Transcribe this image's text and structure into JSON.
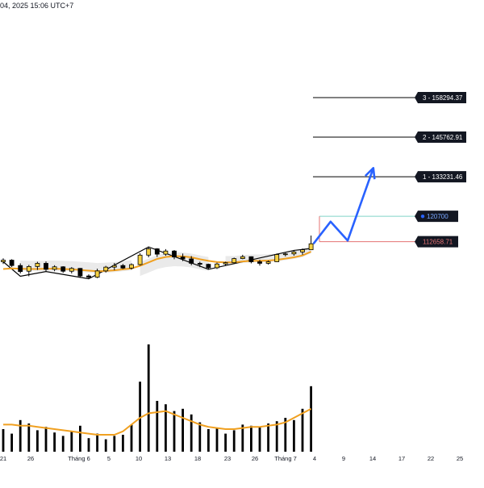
{
  "header": {
    "text": "04, 2025 15:06 UTC+7"
  },
  "colors": {
    "up": "#f5d142",
    "down": "#000000",
    "ma": "#f0a020",
    "projection": "#2962ff",
    "zigzag": "#000000",
    "entry_line": "#81d4c7",
    "stop_line": "#e57373",
    "target_line": "#000000",
    "label_bg": "#131722",
    "label_text": "#ffffff",
    "entry_dot": "#2962ff",
    "band": "#d9d9d9",
    "axis_text": "#131722"
  },
  "chart_data": [
    {
      "type": "candlestick",
      "title": "",
      "x_tick_labels": [
        "21",
        "26",
        "Tháng 6",
        "5",
        "10",
        "13",
        "18",
        "23",
        "26",
        "Tháng 7",
        "4",
        "9",
        "14",
        "17",
        "22",
        "25"
      ],
      "ohlc": [
        [
          106300,
          107400,
          105600,
          106800
        ],
        [
          106800,
          107100,
          104600,
          105100
        ],
        [
          105100,
          105800,
          102600,
          103200
        ],
        [
          103300,
          105300,
          101700,
          104800
        ],
        [
          104800,
          106300,
          103700,
          105800
        ],
        [
          105800,
          106400,
          103200,
          103900
        ],
        [
          103900,
          105200,
          103300,
          104700
        ],
        [
          104700,
          104900,
          102800,
          103300
        ],
        [
          103300,
          104600,
          102600,
          104200
        ],
        [
          104200,
          104300,
          101200,
          101800
        ],
        [
          101800,
          102300,
          100900,
          101400
        ],
        [
          101400,
          104100,
          101100,
          103400
        ],
        [
          103400,
          105000,
          102900,
          104600
        ],
        [
          104600,
          105900,
          103600,
          105100
        ],
        [
          105100,
          105600,
          104000,
          104300
        ],
        [
          104300,
          105800,
          103800,
          105400
        ],
        [
          105400,
          109000,
          105100,
          108400
        ],
        [
          108400,
          111000,
          107700,
          110400
        ],
        [
          110400,
          110600,
          107800,
          108700
        ],
        [
          108700,
          110300,
          108200,
          109700
        ],
        [
          109700,
          110000,
          107100,
          107800
        ],
        [
          107800,
          108900,
          106500,
          107200
        ],
        [
          107200,
          108100,
          105200,
          105800
        ],
        [
          105800,
          106300,
          104600,
          105500
        ],
        [
          105500,
          105700,
          103900,
          104400
        ],
        [
          104400,
          106000,
          104000,
          105600
        ],
        [
          105600,
          106300,
          105000,
          106000
        ],
        [
          106000,
          107600,
          105700,
          107300
        ],
        [
          107300,
          108500,
          107100,
          107900
        ],
        [
          107900,
          108000,
          105800,
          106300
        ],
        [
          106300,
          106900,
          105100,
          105800
        ],
        [
          105800,
          106700,
          105400,
          106300
        ],
        [
          106300,
          108900,
          106200,
          108600
        ],
        [
          108600,
          109100,
          108000,
          108800
        ],
        [
          108800,
          109900,
          108200,
          109400
        ],
        [
          109400,
          110500,
          108500,
          110100
        ],
        [
          110100,
          114600,
          110000,
          112000
        ]
      ],
      "ma_series": [
        104000,
        104200,
        104100,
        104000,
        104000,
        104100,
        104100,
        104000,
        103900,
        103700,
        103500,
        103300,
        103400,
        103600,
        103900,
        104200,
        105000,
        106100,
        107200,
        107800,
        108100,
        108000,
        107700,
        107100,
        106600,
        106200,
        106100,
        106100,
        106400,
        106600,
        106600,
        106700,
        106900,
        107300,
        107700,
        108300,
        109500
      ],
      "zigzag": [
        [
          0,
          106300
        ],
        [
          2,
          101700
        ],
        [
          5,
          103200
        ],
        [
          10,
          100900
        ],
        [
          17,
          111000
        ],
        [
          24,
          103900
        ],
        [
          34,
          109900
        ],
        [
          36,
          110500
        ]
      ],
      "projection": [
        [
          36,
          112000
        ],
        [
          38,
          119000
        ],
        [
          40,
          113000
        ],
        [
          43,
          136000
        ]
      ],
      "levels": [
        {
          "label": "3 - 158294.37",
          "value": 158294.37,
          "kind": "target"
        },
        {
          "label": "2 - 145762.91",
          "value": 145762.91,
          "kind": "target"
        },
        {
          "label": "1 - 133231.46",
          "value": 133231.46,
          "kind": "target"
        },
        {
          "label": "120700",
          "value": 120700,
          "kind": "entry"
        },
        {
          "label": "112658.71",
          "value": 112658.71,
          "kind": "stop"
        }
      ]
    },
    {
      "type": "bar",
      "title": "",
      "volume": [
        20,
        16,
        28,
        25,
        19,
        22,
        17,
        14,
        18,
        23,
        12,
        16,
        11,
        14,
        15,
        24,
        62,
        95,
        45,
        42,
        36,
        38,
        33,
        26,
        20,
        21,
        16,
        19,
        24,
        23,
        22,
        25,
        27,
        30,
        28,
        38,
        58
      ],
      "volume_ma": [
        24,
        24,
        23,
        23,
        22,
        21,
        20,
        19,
        18,
        17,
        16,
        15,
        15,
        15,
        18,
        24,
        30,
        34,
        35,
        36,
        33,
        30,
        27,
        24,
        22,
        21,
        20,
        20,
        21,
        22,
        22,
        23,
        24,
        26,
        30,
        34,
        38
      ]
    }
  ]
}
